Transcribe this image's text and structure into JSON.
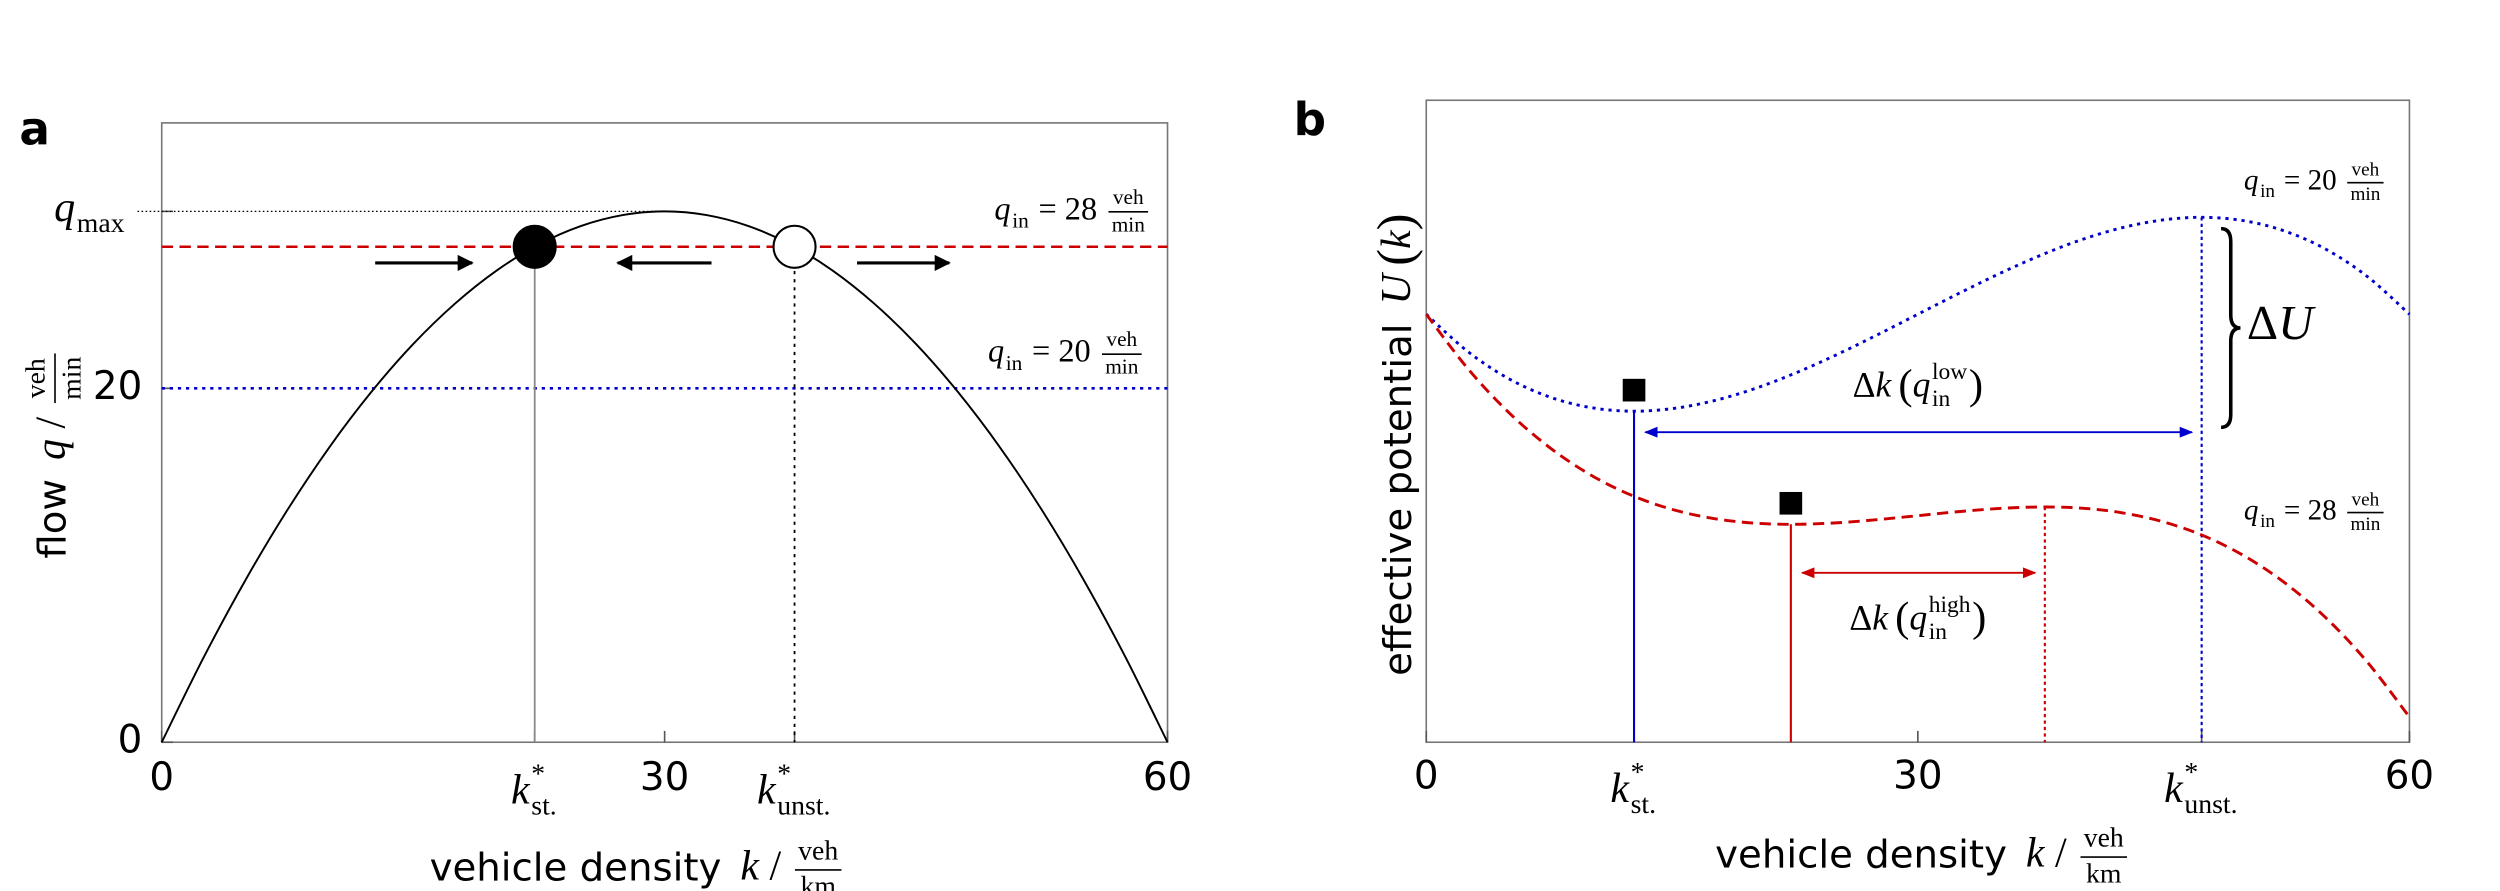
{
  "chart_data": [
    {
      "type": "line",
      "panel_label": "a",
      "xlabel": {
        "text": "vehicle density",
        "symbol": "k",
        "slash": "/",
        "num": "veh",
        "den": "km"
      },
      "ylabel": {
        "text": "flow",
        "symbol": "q",
        "slash": "/",
        "num": "veh",
        "den": "min"
      },
      "xlim": [
        0,
        60
      ],
      "ylim": [
        0,
        35
      ],
      "xticks": [
        0,
        {
          "value": 22.25,
          "label": {
            "symbol": "k",
            "sup": "*",
            "sub": "st."
          }
        },
        30,
        {
          "value": 37.75,
          "label": {
            "symbol": "k",
            "sup": "*",
            "sub": "unst."
          }
        },
        60
      ],
      "yticks": [
        0,
        20,
        {
          "value": 30,
          "label": {
            "symbol": "q",
            "sub": "max"
          }
        }
      ],
      "x": [
        0,
        2.5,
        5,
        7.5,
        10,
        12.5,
        15,
        17.5,
        20,
        22.5,
        25,
        27.5,
        30,
        32.5,
        35,
        37.5,
        40,
        42.5,
        45,
        47.5,
        50,
        52.5,
        55,
        57.5,
        60
      ],
      "series": [
        {
          "color": "#000000",
          "style": "solid",
          "values": [
            0,
            4.79,
            9.17,
            13.13,
            16.67,
            19.79,
            22.5,
            24.79,
            26.67,
            28.13,
            29.17,
            29.79,
            30,
            29.79,
            29.17,
            28.13,
            26.67,
            24.79,
            22.5,
            19.79,
            16.67,
            13.13,
            9.17,
            4.79,
            0
          ]
        }
      ],
      "hlines": [
        {
          "value": 28,
          "color": "#cc0000",
          "style": "dashed",
          "label": {
            "symbol": "q",
            "sub": "in",
            "relation": "= 28",
            "num": "veh",
            "den": "min"
          }
        },
        {
          "value": 20,
          "color": "#0000cc",
          "style": "dotted",
          "label": {
            "symbol": "q",
            "sub": "in",
            "relation": "= 20",
            "num": "veh",
            "den": "min"
          }
        }
      ],
      "points": [
        {
          "x": 22.25,
          "y": 28,
          "fill": "#000000",
          "drop": {
            "style": "solid",
            "color": "#888888"
          }
        },
        {
          "x": 37.75,
          "y": 28,
          "fill": "#ffffff",
          "drop": {
            "style": "dotted",
            "color": "#000000"
          }
        }
      ]
    },
    {
      "type": "line",
      "panel_label": "b",
      "xlabel": {
        "text": "vehicle density",
        "symbol": "k",
        "slash": "/",
        "num": "veh",
        "den": "km"
      },
      "ylabel": {
        "text": "effective potential",
        "symbol": "U",
        "open": "(",
        "symbol_2": "k",
        "close": ")"
      },
      "xlim": [
        0,
        60
      ],
      "ylim": [
        -510,
        255
      ],
      "xticks": [
        0,
        {
          "value": 12.68,
          "label": {
            "symbol": "k",
            "sup": "*",
            "sub": "st."
          }
        },
        30,
        {
          "value": 47.32,
          "label": {
            "symbol": "k",
            "sup": "*",
            "sub": "unst."
          }
        },
        60
      ],
      "x": [
        0,
        2.5,
        5,
        7.5,
        10,
        12.5,
        15,
        17.5,
        20,
        22.5,
        25,
        27.5,
        30,
        32.5,
        35,
        37.5,
        40,
        42.5,
        45,
        47.5,
        50,
        52.5,
        55,
        57.5,
        60
      ],
      "series": [
        {
          "color": "#0000cc",
          "style": "dotted",
          "label": {
            "symbol": "q",
            "sub": "in",
            "relation": "= 20",
            "num": "veh",
            "den": "min"
          },
          "values": [
            0,
            -43.9,
            -76.4,
            -98.4,
            -111.1,
            -115.5,
            -112.5,
            -103.3,
            -88.9,
            -70.3,
            -48.6,
            -24.8,
            0,
            24.8,
            48.6,
            70.3,
            88.9,
            103.3,
            112.5,
            115.5,
            111.1,
            98.4,
            76.4,
            43.9,
            0
          ],
          "minimum": {
            "x": 12.68,
            "y": -115.5
          },
          "maximum": {
            "x": 47.32,
            "y": 115.5
          },
          "delta_k_label": {
            "operator": "Δ",
            "symbol": "k",
            "open": "(",
            "symbol_2": "q",
            "sup": "low",
            "sub": "in",
            "close": ")"
          }
        },
        {
          "color": "#cc0000",
          "style": "dashed",
          "label": {
            "symbol": "q",
            "sub": "in",
            "relation": "= 28",
            "num": "veh",
            "den": "min"
          },
          "values": [
            0,
            -63.9,
            -116.4,
            -158.4,
            -191.1,
            -215.5,
            -232.5,
            -243.3,
            -248.9,
            -250.3,
            -248.6,
            -244.8,
            -240,
            -235.2,
            -231.4,
            -229.7,
            -231.1,
            -236.7,
            -247.5,
            -264.5,
            -288.9,
            -321.6,
            -363.6,
            -416.1,
            -480
          ],
          "minimum": {
            "x": 22.25,
            "y": -250.3
          },
          "maximum": {
            "x": 37.75,
            "y": -229.7
          },
          "delta_k_label": {
            "operator": "Δ",
            "symbol": "k",
            "open": "(",
            "symbol_2": "q",
            "sup": "high",
            "sub": "in",
            "close": ")"
          }
        }
      ],
      "delta_u_label": {
        "operator": "Δ",
        "symbol": "U"
      }
    }
  ]
}
